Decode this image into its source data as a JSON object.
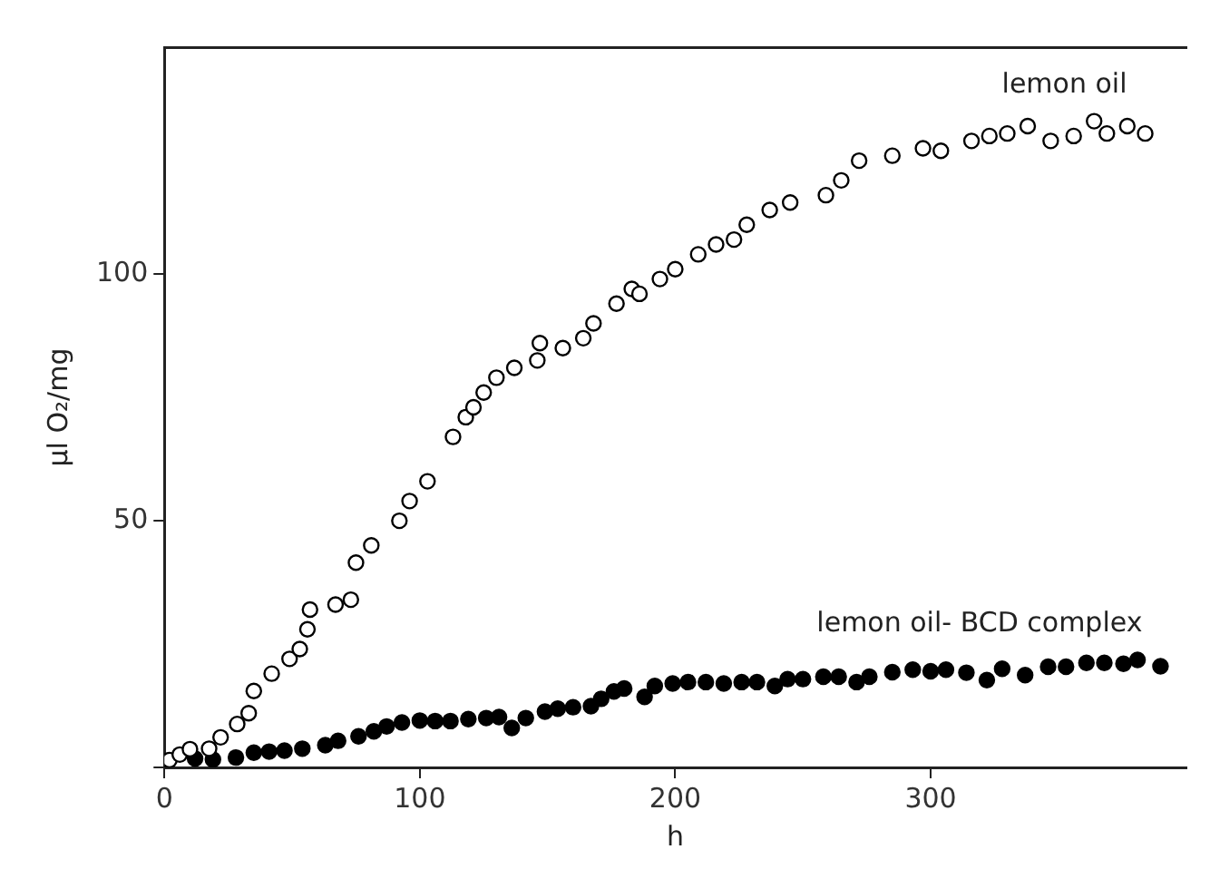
{
  "chart_data": {
    "type": "scatter",
    "xlabel": "h",
    "ylabel": "µl O₂/mg",
    "xlim": [
      0,
      400
    ],
    "ylim": [
      0,
      146
    ],
    "xticks": [
      0,
      100,
      200,
      300
    ],
    "yticks": [
      {
        "value": 0,
        "label": null
      },
      50,
      100
    ],
    "grid": false,
    "legend": false,
    "marker": "circle",
    "series": [
      {
        "name": "lemon oil",
        "color": "#000000",
        "x": [
          2,
          6,
          10,
          17.5,
          22,
          28.5,
          33,
          35,
          42,
          49,
          53,
          56,
          57,
          67,
          73,
          75,
          81,
          92,
          96,
          103,
          113,
          118,
          121,
          125,
          130,
          137,
          146,
          147,
          156,
          164,
          168,
          177,
          183,
          186,
          194,
          200,
          209,
          216,
          223,
          228,
          237,
          245,
          259,
          265,
          272,
          285,
          297,
          304,
          316,
          323,
          330,
          338,
          347,
          356,
          364,
          369,
          377,
          384
        ],
        "values": [
          1.5,
          2.6,
          3.7,
          3.8,
          6.1,
          8.8,
          11,
          15.5,
          19,
          22,
          24,
          28,
          32,
          33,
          34,
          41.5,
          45,
          50,
          54,
          58,
          67,
          71,
          73,
          76,
          79,
          81,
          82.5,
          86,
          85,
          87,
          90,
          94,
          97,
          96,
          99,
          101,
          104,
          106,
          107,
          110,
          113,
          114.5,
          116,
          119,
          123,
          124,
          125.5,
          125,
          127,
          128,
          128.5,
          130,
          127,
          128,
          131,
          128.5,
          130,
          128.5
        ]
      },
      {
        "name": "lemon oil- BCD complex",
        "color": "#000000",
        "x": [
          12,
          19,
          28,
          35,
          41,
          47,
          54,
          63,
          68,
          76,
          82,
          87,
          93,
          100,
          106,
          112,
          119,
          126,
          131,
          136,
          141.5,
          149,
          154,
          160,
          167,
          171,
          176,
          180,
          188,
          192,
          199,
          205,
          212,
          219,
          226,
          232,
          239,
          244,
          250,
          258,
          264,
          271,
          276,
          285,
          293,
          300,
          306,
          314,
          322,
          328,
          337,
          346,
          353,
          361,
          368,
          375.5,
          381,
          390
        ],
        "values": [
          1.8,
          1.6,
          2,
          3,
          3.2,
          3.4,
          3.8,
          4.5,
          5.4,
          6.3,
          7.3,
          8.3,
          9.1,
          9.5,
          9.4,
          9.4,
          9.8,
          10,
          10.2,
          8,
          10,
          11.3,
          11.9,
          12.2,
          12.4,
          13.9,
          15.4,
          16,
          14.3,
          16.5,
          17,
          17.3,
          17.3,
          17,
          17.3,
          17.3,
          16.5,
          17.9,
          17.9,
          18.4,
          18.4,
          17.3,
          18.4,
          19.3,
          19.8,
          19.5,
          19.8,
          19.2,
          17.7,
          20,
          18.7,
          20.4,
          20.4,
          21.2,
          21.2,
          21,
          21.8,
          20.5
        ]
      }
    ]
  }
}
